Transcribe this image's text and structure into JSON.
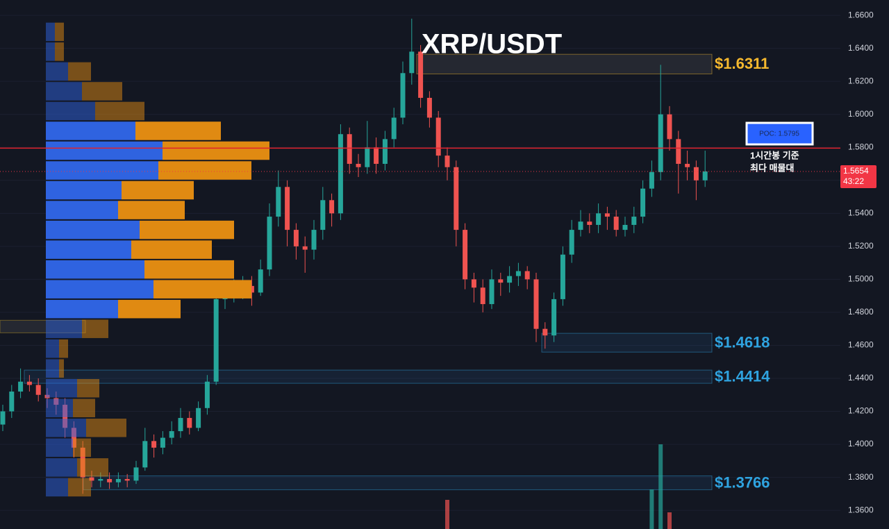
{
  "chart_data": {
    "type": "candlestick",
    "title": "XRP/USDT",
    "ylim": [
      1.3487,
      1.6693
    ],
    "yticks": [
      {
        "value": 1.36,
        "label": "1.3600"
      },
      {
        "value": 1.38,
        "label": "1.3800"
      },
      {
        "value": 1.4,
        "label": "1.4000"
      },
      {
        "value": 1.42,
        "label": "1.4200"
      },
      {
        "value": 1.44,
        "label": "1.4400"
      },
      {
        "value": 1.46,
        "label": "1.4600"
      },
      {
        "value": 1.48,
        "label": "1.4800"
      },
      {
        "value": 1.5,
        "label": "1.5000"
      },
      {
        "value": 1.52,
        "label": "1.5200"
      },
      {
        "value": 1.54,
        "label": "1.5400"
      },
      {
        "value": 1.56,
        "label": "1.5600"
      },
      {
        "value": 1.58,
        "label": "1.5800"
      },
      {
        "value": 1.6,
        "label": "1.6000"
      },
      {
        "value": 1.62,
        "label": "1.6200"
      },
      {
        "value": 1.64,
        "label": "1.6400"
      },
      {
        "value": 1.66,
        "label": "1.6600"
      }
    ],
    "grid": true,
    "up_color": "#26a69a",
    "down_color": "#ef5350",
    "candles": {
      "open": [
        1.412,
        1.42,
        1.432,
        1.438,
        1.436,
        1.43,
        1.428,
        1.424,
        1.41,
        1.398,
        1.38,
        1.378,
        1.379,
        1.377,
        1.379,
        1.378,
        1.386,
        1.402,
        1.398,
        1.404,
        1.408,
        1.416,
        1.41,
        1.422,
        1.438,
        1.488,
        1.492,
        1.494,
        1.496,
        1.492,
        1.506,
        1.538,
        1.556,
        1.53,
        1.52,
        1.518,
        1.53,
        1.548,
        1.54,
        1.588,
        1.57,
        1.568,
        1.58,
        1.57,
        1.585,
        1.598,
        1.625,
        1.638,
        1.61,
        1.598,
        1.575,
        1.568,
        1.53,
        1.5,
        1.495,
        1.485,
        1.5,
        1.498,
        1.502,
        1.505,
        1.5,
        1.47,
        1.466,
        1.488,
        1.515,
        1.53,
        1.535,
        1.533,
        1.54,
        1.538,
        1.53,
        1.533,
        1.538,
        1.555,
        1.565,
        1.6,
        1.585,
        1.57,
        1.568,
        1.56
      ],
      "high": [
        1.424,
        1.436,
        1.446,
        1.442,
        1.44,
        1.434,
        1.432,
        1.428,
        1.414,
        1.402,
        1.384,
        1.383,
        1.383,
        1.383,
        1.382,
        1.39,
        1.41,
        1.406,
        1.408,
        1.414,
        1.422,
        1.42,
        1.426,
        1.442,
        1.492,
        1.498,
        1.5,
        1.502,
        1.502,
        1.512,
        1.546,
        1.566,
        1.56,
        1.534,
        1.526,
        1.536,
        1.556,
        1.552,
        1.594,
        1.592,
        1.576,
        1.596,
        1.586,
        1.59,
        1.604,
        1.632,
        1.658,
        1.642,
        1.614,
        1.602,
        1.58,
        1.572,
        1.534,
        1.504,
        1.5,
        1.506,
        1.504,
        1.508,
        1.51,
        1.508,
        1.504,
        1.474,
        1.492,
        1.52,
        1.536,
        1.542,
        1.54,
        1.546,
        1.544,
        1.542,
        1.538,
        1.544,
        1.56,
        1.572,
        1.63,
        1.605,
        1.59,
        1.578,
        1.572,
        1.578
      ],
      "low": [
        1.408,
        1.416,
        1.428,
        1.432,
        1.426,
        1.422,
        1.418,
        1.404,
        1.392,
        1.37,
        1.374,
        1.374,
        1.373,
        1.374,
        1.374,
        1.376,
        1.384,
        1.392,
        1.394,
        1.4,
        1.404,
        1.406,
        1.408,
        1.418,
        1.436,
        1.482,
        1.486,
        1.488,
        1.484,
        1.49,
        1.502,
        1.532,
        1.52,
        1.512,
        1.504,
        1.512,
        1.524,
        1.532,
        1.536,
        1.564,
        1.562,
        1.564,
        1.564,
        1.566,
        1.58,
        1.594,
        1.618,
        1.604,
        1.592,
        1.568,
        1.56,
        1.52,
        1.494,
        1.486,
        1.48,
        1.482,
        1.49,
        1.492,
        1.496,
        1.494,
        1.462,
        1.458,
        1.462,
        1.484,
        1.51,
        1.526,
        1.528,
        1.528,
        1.53,
        1.526,
        1.526,
        1.528,
        1.534,
        1.55,
        1.56,
        1.578,
        1.552,
        1.56,
        1.548,
        1.556
      ],
      "close": [
        1.42,
        1.432,
        1.438,
        1.436,
        1.43,
        1.428,
        1.424,
        1.41,
        1.398,
        1.38,
        1.378,
        1.379,
        1.377,
        1.379,
        1.378,
        1.386,
        1.402,
        1.398,
        1.404,
        1.408,
        1.416,
        1.41,
        1.422,
        1.438,
        1.488,
        1.492,
        1.494,
        1.496,
        1.492,
        1.506,
        1.538,
        1.556,
        1.53,
        1.52,
        1.518,
        1.53,
        1.548,
        1.54,
        1.588,
        1.57,
        1.568,
        1.58,
        1.57,
        1.585,
        1.598,
        1.625,
        1.638,
        1.61,
        1.598,
        1.575,
        1.568,
        1.53,
        1.5,
        1.495,
        1.485,
        1.5,
        1.498,
        1.502,
        1.505,
        1.5,
        1.47,
        1.466,
        1.488,
        1.515,
        1.53,
        1.535,
        1.533,
        1.54,
        1.538,
        1.53,
        1.533,
        1.538,
        1.555,
        1.565,
        1.6,
        1.585,
        1.57,
        1.568,
        1.56,
        1.5654
      ]
    },
    "volume": [
      null,
      null,
      null,
      null,
      null,
      null,
      null,
      null,
      null,
      null,
      null,
      null,
      null,
      null,
      null,
      null,
      null,
      null,
      null,
      null,
      null,
      null,
      null,
      null,
      null,
      null,
      null,
      null,
      null,
      null,
      null,
      null,
      null,
      null,
      null,
      null,
      null,
      null,
      null,
      null,
      null,
      null,
      null,
      null,
      null,
      null,
      null,
      null,
      null,
      null,
      42,
      null,
      null,
      null,
      null,
      null,
      null,
      null,
      null,
      null,
      null,
      null,
      null,
      null,
      null,
      null,
      null,
      null,
      null,
      null,
      null,
      null,
      null,
      57,
      122,
      24,
      null,
      null,
      null,
      null
    ],
    "volume_lim": [
      0,
      300
    ],
    "volume_profile": {
      "bins": [
        1.368,
        1.38,
        1.392,
        1.404,
        1.416,
        1.428,
        1.44,
        1.452,
        1.464,
        1.476,
        1.488,
        1.5,
        1.512,
        1.524,
        1.536,
        1.548,
        1.56,
        1.572,
        1.584,
        1.596,
        1.608,
        1.62,
        1.632,
        1.644,
        1.656
      ],
      "buy": [
        32,
        45,
        39,
        58,
        39,
        45,
        19,
        19,
        52,
        104,
        155,
        142,
        123,
        135,
        104,
        109,
        162,
        168,
        129,
        71,
        52,
        32,
        13,
        13
      ],
      "sell": [
        33,
        45,
        26,
        58,
        32,
        32,
        7,
        13,
        38,
        90,
        141,
        129,
        116,
        136,
        96,
        104,
        134,
        154,
        123,
        71,
        58,
        33,
        13,
        13
      ],
      "buy_color": "#2f63e0",
      "sell_color": "#e08a12",
      "value_area": {
        "low": 1.476,
        "high": 1.596
      }
    },
    "zones": [
      {
        "label": "$1.6311",
        "value": 1.6311,
        "top": 1.6364,
        "bottom": 1.6245,
        "color": "#f5b82e"
      },
      {
        "label": "$1.4618",
        "value": 1.4618,
        "top": 1.4673,
        "bottom": 1.4559,
        "color": "#2fa3e0"
      },
      {
        "label": "$1.4414",
        "value": 1.4414,
        "top": 1.445,
        "bottom": 1.437,
        "color": "#2fa3e0"
      },
      {
        "label": "$1.3766",
        "value": 1.3766,
        "top": 1.3809,
        "bottom": 1.3725,
        "color": "#2fa3e0"
      },
      {
        "top": 1.4752,
        "bottom": 1.4676,
        "color": "#c9a227"
      }
    ],
    "poc": {
      "value": 1.5795,
      "label": "POC: 1.5795",
      "color": "#e0232e"
    },
    "annotation": [
      "1시간봉 기준",
      "최다 매물대"
    ],
    "last_price": {
      "value": 1.5654,
      "label": "1.5654",
      "countdown": "43:22",
      "color": "#f23645"
    }
  }
}
